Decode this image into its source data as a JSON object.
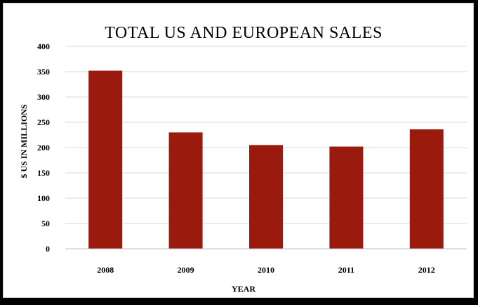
{
  "chart_data": {
    "type": "bar",
    "title": "TOTAL US AND EUROPEAN SALES",
    "xlabel": "YEAR",
    "ylabel": "$ US IN MILLIONS",
    "categories": [
      "2008",
      "2009",
      "2010",
      "2011",
      "2012"
    ],
    "values": [
      352,
      230,
      205,
      202,
      236
    ],
    "ylim": [
      0,
      400
    ],
    "yticks": [
      "0",
      "50",
      "100",
      "150",
      "200",
      "250",
      "300",
      "350",
      "400"
    ],
    "grid": "horizontal",
    "bar_color": "#9b1a0e",
    "grid_color": "#d9d9d9"
  }
}
